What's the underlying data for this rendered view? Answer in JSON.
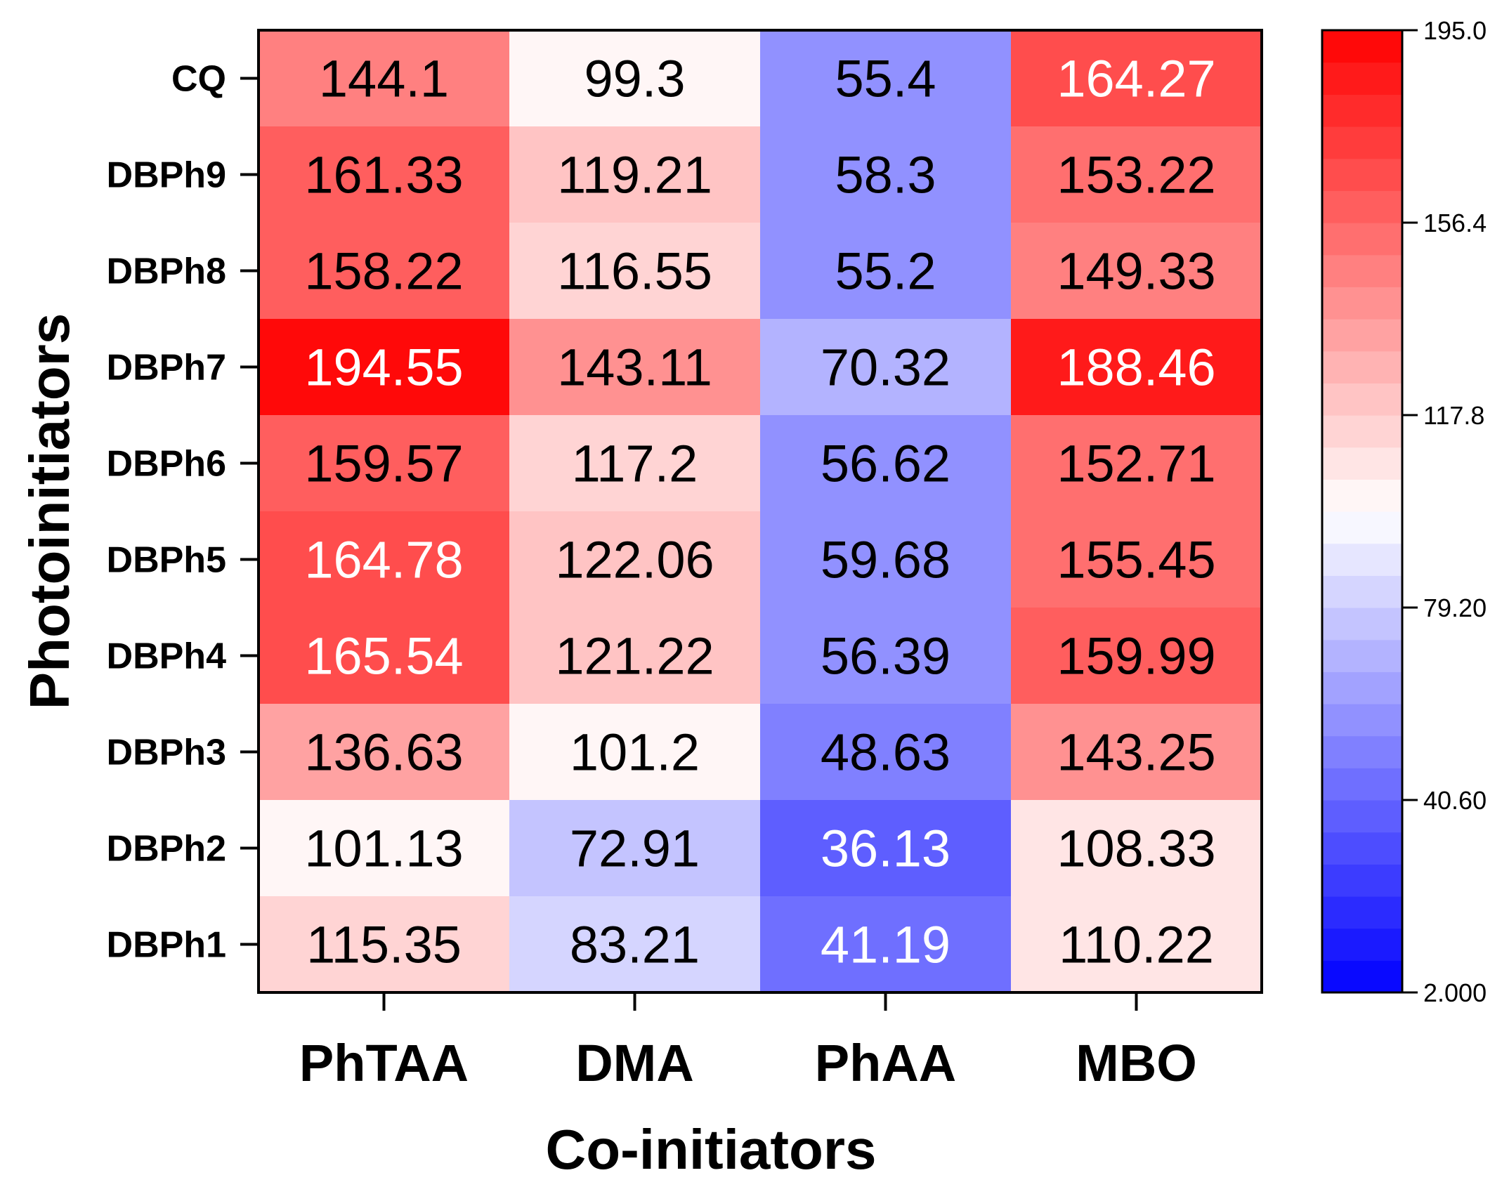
{
  "chart_data": {
    "type": "heatmap",
    "xlabel": "Co-initiators",
    "ylabel": "Photoinitiators",
    "x_categories": [
      "PhTAA",
      "DMA",
      "PhAA",
      "MBO"
    ],
    "y_categories": [
      "CQ",
      "DBPh9",
      "DBPh8",
      "DBPh7",
      "DBPh6",
      "DBPh5",
      "DBPh4",
      "DBPh3",
      "DBPh2",
      "DBPh1"
    ],
    "values": [
      [
        144.1,
        99.3,
        55.4,
        164.27
      ],
      [
        161.33,
        119.21,
        58.3,
        153.22
      ],
      [
        158.22,
        116.55,
        55.2,
        149.33
      ],
      [
        194.55,
        143.11,
        70.32,
        188.46
      ],
      [
        159.57,
        117.2,
        56.62,
        152.71
      ],
      [
        164.78,
        122.06,
        59.68,
        155.45
      ],
      [
        165.54,
        121.22,
        56.39,
        159.99
      ],
      [
        136.63,
        101.2,
        48.63,
        143.25
      ],
      [
        101.13,
        72.91,
        36.13,
        108.33
      ],
      [
        115.35,
        83.21,
        41.19,
        110.22
      ]
    ],
    "cell_labels": [
      [
        "144.1",
        "99.3",
        "55.4",
        "164.27"
      ],
      [
        "161.33",
        "119.21",
        "58.3",
        "153.22"
      ],
      [
        "158.22",
        "116.55",
        "55.2",
        "149.33"
      ],
      [
        "194.55",
        "143.11",
        "70.32",
        "188.46"
      ],
      [
        "159.57",
        "117.2",
        "56.62",
        "152.71"
      ],
      [
        "164.78",
        "122.06",
        "59.68",
        "155.45"
      ],
      [
        "165.54",
        "121.22",
        "56.39",
        "159.99"
      ],
      [
        "136.63",
        "101.2",
        "48.63",
        "143.25"
      ],
      [
        "101.13",
        "72.91",
        "36.13",
        "108.33"
      ],
      [
        "115.35",
        "83.21",
        "41.19",
        "110.22"
      ]
    ],
    "colorbar": {
      "min": 2.0,
      "max": 195.0,
      "levels": 30,
      "tick_values": [
        195.0,
        156.4,
        117.8,
        79.2,
        40.6,
        2.0
      ],
      "tick_labels": [
        "195.0",
        "156.4",
        "117.8",
        "79.20",
        "40.60",
        "2.000"
      ],
      "colors": {
        "low": "#0000ff",
        "mid": "#ffffff",
        "high": "#ff0000"
      }
    }
  }
}
